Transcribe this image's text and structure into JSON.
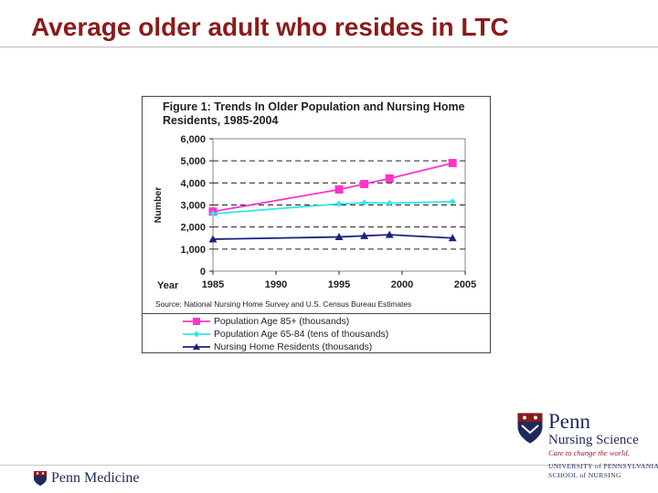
{
  "slide": {
    "title": "Average older adult who resides in LTC"
  },
  "chart_data": {
    "type": "line",
    "title": "Figure 1: Trends In Older Population and Nursing Home Residents, 1985-2004",
    "xlabel": "Year",
    "ylabel": "Number",
    "xlim": [
      1985,
      2005
    ],
    "ylim": [
      0,
      6000
    ],
    "x_ticks": [
      "1985",
      "1990",
      "1995",
      "2000",
      "2005"
    ],
    "y_ticks": [
      "6,000",
      "5,000",
      "4,000",
      "3,000",
      "2,000",
      "1,000",
      "0"
    ],
    "source": "Source: National Nursing Home Survey and U.S. Census Bureau Estimates",
    "series": [
      {
        "name": "Population Age 85+ (thousands)",
        "color": "#ff33cc",
        "marker": "square",
        "x": [
          1985,
          1995,
          1997,
          1999,
          2004
        ],
        "values": [
          2700,
          3700,
          3950,
          4200,
          4900
        ]
      },
      {
        "name": "Population Age 65-84 (tens of thousands)",
        "color": "#33e6e6",
        "marker": "diamond",
        "x": [
          1985,
          1995,
          1997,
          1999,
          2004
        ],
        "values": [
          2600,
          3050,
          3100,
          3080,
          3150
        ]
      },
      {
        "name": "Nursing Home Residents (thousands)",
        "color": "#1a237e",
        "marker": "triangle",
        "x": [
          1985,
          1995,
          1997,
          1999,
          2004
        ],
        "values": [
          1450,
          1550,
          1600,
          1650,
          1500
        ]
      }
    ]
  },
  "footer": {
    "penn_medicine": "Penn Medicine",
    "nursing_penn": "Penn",
    "nursing_science": "Nursing Science",
    "tagline": "Care to change the world.",
    "university": "UNIVERSITY of PENNSYLVANIA",
    "school": "SCHOOL of NURSING"
  }
}
